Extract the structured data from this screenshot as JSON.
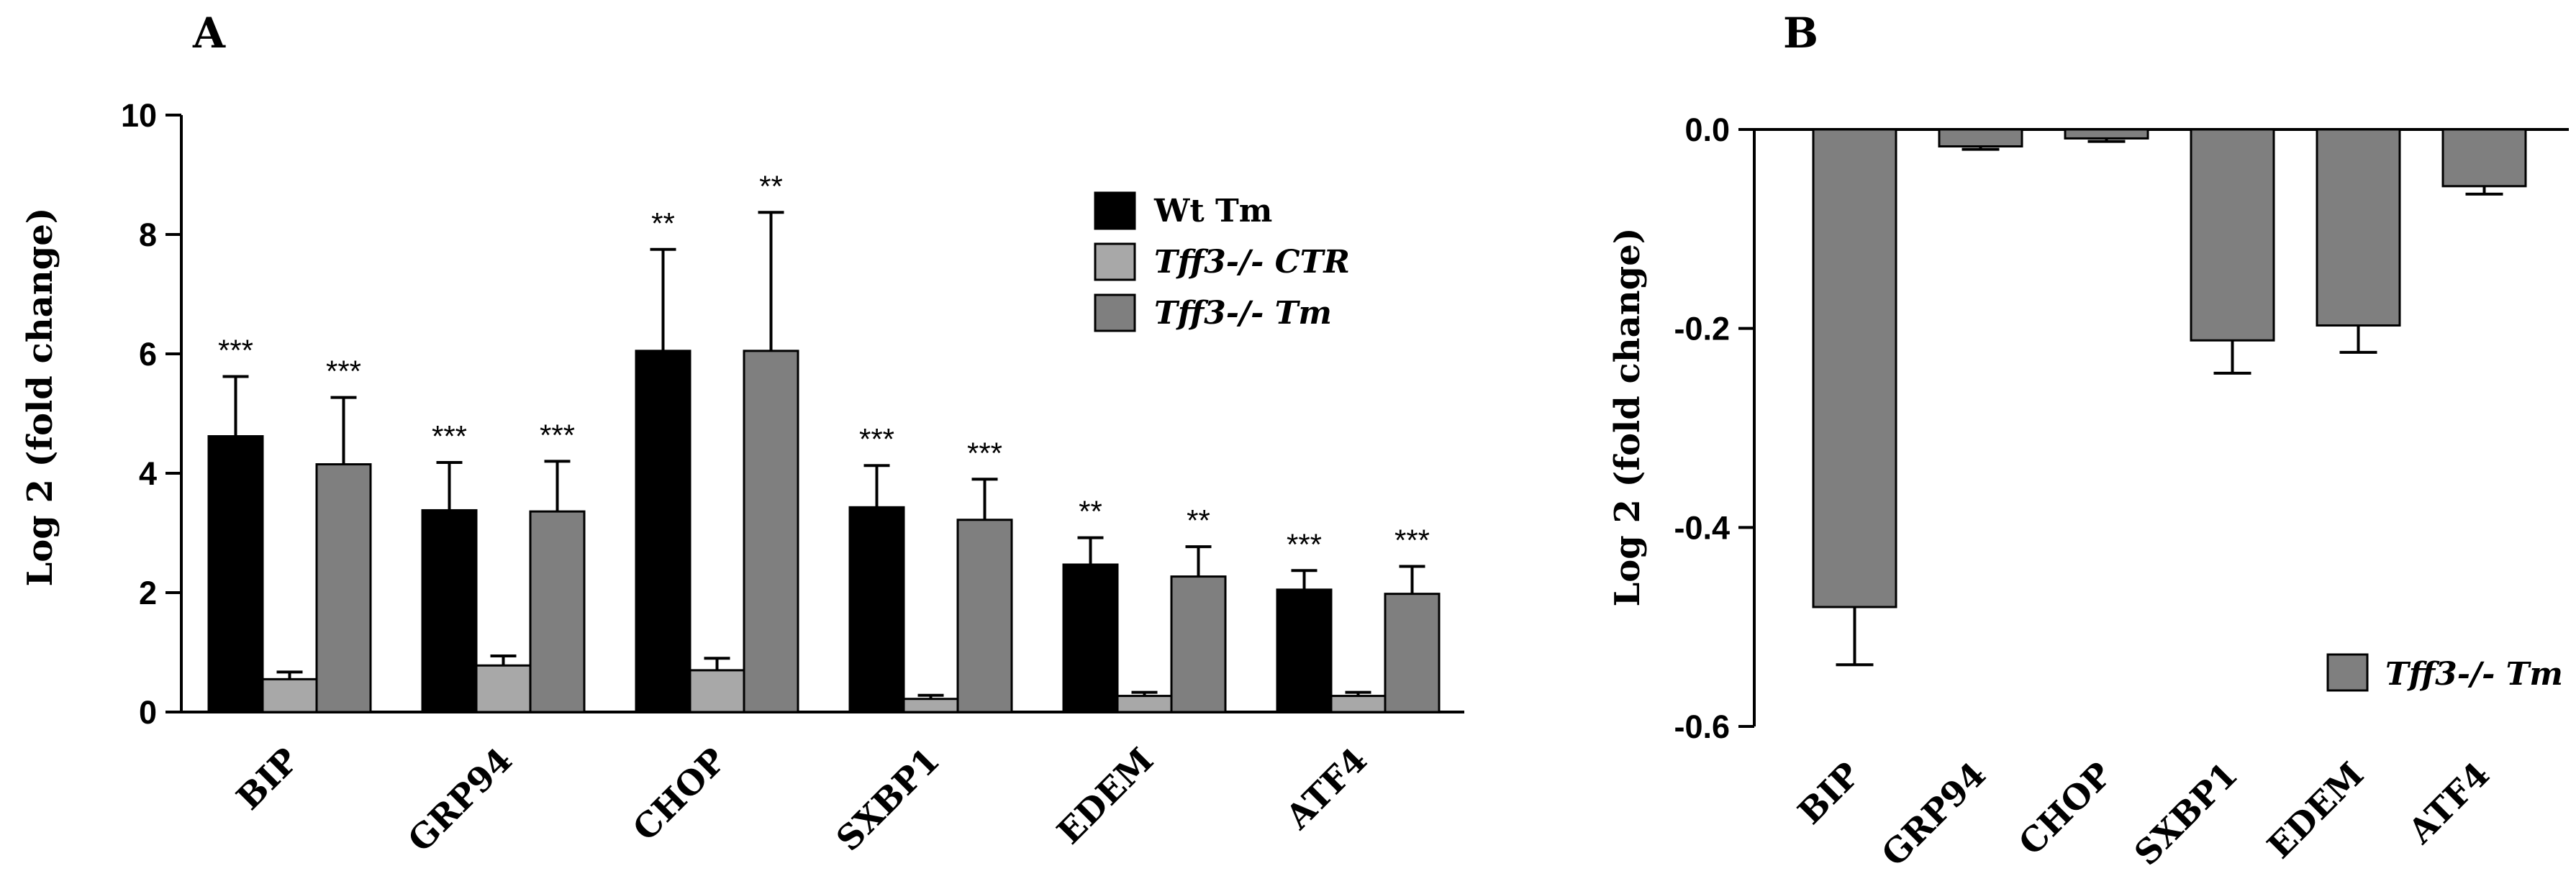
{
  "chart_data": [
    {
      "panel": "A",
      "type": "bar",
      "title": "",
      "ylabel": "Log 2 (fold change)",
      "xlabel": "",
      "ylim": [
        0,
        10
      ],
      "yticks": [
        "0",
        "2",
        "4",
        "6",
        "8",
        "10"
      ],
      "categories": [
        "BIP",
        "GRP94",
        "CHOP",
        "SXBP1",
        "EDEM",
        "ATF4"
      ],
      "legend_position": "top-right",
      "series": [
        {
          "name": "Wt Tm",
          "color": "#000000",
          "values": [
            4.62,
            3.38,
            6.05,
            3.43,
            2.47,
            2.05
          ],
          "errors": [
            1.0,
            0.8,
            1.7,
            0.7,
            0.45,
            0.32
          ],
          "significance": [
            "***",
            "***",
            "**",
            "***",
            "**",
            "***"
          ]
        },
        {
          "name": "Tff3-/- CTR",
          "color": "#a8a8a8",
          "values": [
            0.55,
            0.78,
            0.7,
            0.22,
            0.27,
            0.27
          ],
          "errors": [
            0.12,
            0.16,
            0.2,
            0.06,
            0.06,
            0.06
          ],
          "significance": [
            "",
            "",
            "",
            "",
            "",
            ""
          ]
        },
        {
          "name": "Tff3-/- Tm",
          "color": "#7f7f7f",
          "values": [
            4.15,
            3.36,
            6.05,
            3.22,
            2.27,
            1.98
          ],
          "errors": [
            1.12,
            0.84,
            2.32,
            0.68,
            0.5,
            0.46
          ],
          "significance": [
            "***",
            "***",
            "**",
            "***",
            "**",
            "***"
          ]
        }
      ]
    },
    {
      "panel": "B",
      "type": "bar",
      "title": "",
      "ylabel": "Log 2 (fold change)",
      "xlabel": "",
      "ylim": [
        -0.6,
        0.0
      ],
      "yticks": [
        "0.0",
        "-0.2",
        "-0.4",
        "-0.6"
      ],
      "categories": [
        "BIP",
        "GRP94",
        "CHOP",
        "SXBP1",
        "EDEM",
        "ATF4"
      ],
      "legend_position": "bottom-right",
      "series": [
        {
          "name": "Tff3-/- Tm",
          "color": "#7f7f7f",
          "values": [
            -0.48,
            -0.017,
            -0.009,
            -0.212,
            -0.197,
            -0.057
          ],
          "errors": [
            0.058,
            0.003,
            0.003,
            0.033,
            0.027,
            0.008
          ]
        }
      ]
    }
  ]
}
